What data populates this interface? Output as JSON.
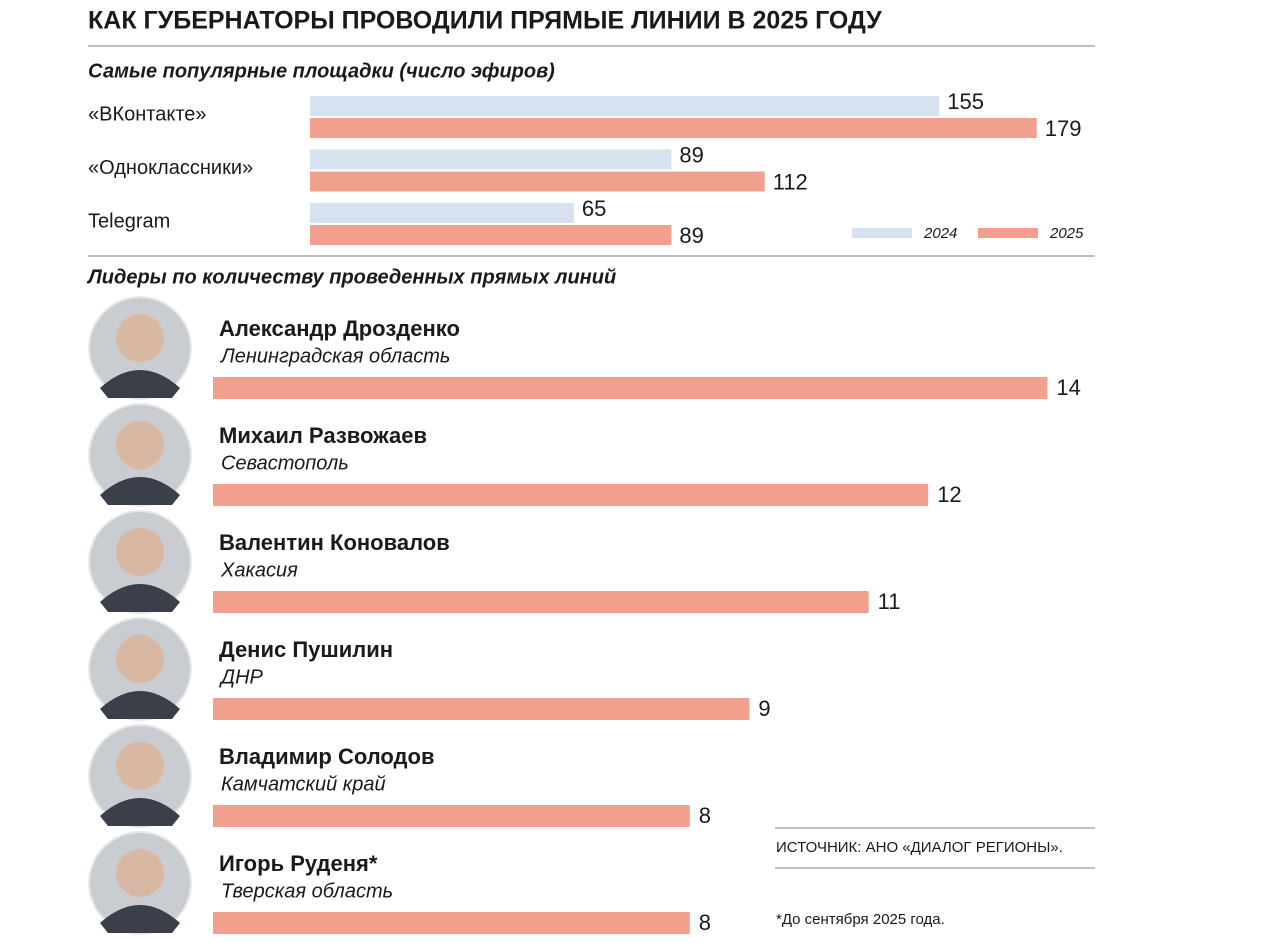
{
  "title": "КАК ГУБЕРНАТОРЫ ПРОВОДИЛИ ПРЯМЫЕ ЛИНИИ В 2025 ГОДУ",
  "chart_data": [
    {
      "type": "bar",
      "title": "Самые популярные площадки (число эфиров)",
      "categories": [
        "«ВКонтакте»",
        "«Одноклассники»",
        "Telegram"
      ],
      "series": [
        {
          "name": "2024",
          "color": "#d6e2ef",
          "values": [
            155,
            89,
            65
          ]
        },
        {
          "name": "2025",
          "color": "#f0a08d",
          "values": [
            179,
            112,
            89
          ]
        }
      ],
      "legend": "bottom-right"
    },
    {
      "type": "bar",
      "title": "Лидеры по количеству проведенных прямых линий",
      "categories": [
        "Александр Дрозденко",
        "Михаил Развожаев",
        "Валентин Коновалов",
        "Денис Пушилин",
        "Владимир Солодов",
        "Игорь Руденя*"
      ],
      "regions": [
        "Ленинградская область",
        "Севастополь",
        "Хакасия",
        "ДНР",
        "Камчатский край",
        "Тверская область"
      ],
      "values": [
        14,
        12,
        11,
        9,
        8,
        8
      ],
      "color": "#f0a08d"
    }
  ],
  "source": "ИСТОЧНИК: АНО «ДИАЛОГ РЕГИОНЫ».",
  "footnote": "*До сентября 2025 года."
}
